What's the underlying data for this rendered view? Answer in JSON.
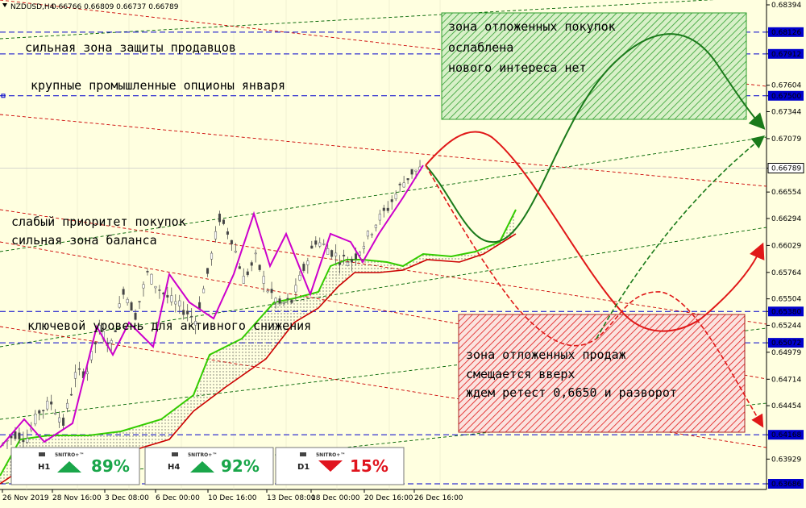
{
  "header": {
    "symbol_timeframe": "NZDUSD,H4",
    "ohlc": "0.66766 0.66809 0.66737 0.66789"
  },
  "annotations": [
    {
      "id": "sellers-zone",
      "text": "сильная зона защиты продавцов"
    },
    {
      "id": "options",
      "text": "крупные промышленные опционы января"
    },
    {
      "id": "buy-priority",
      "text": "слабый приоритет покупок"
    },
    {
      "id": "balance-zone",
      "text": "сильная зона баланса"
    },
    {
      "id": "key-level",
      "text": "ключевой уровень для активного снижения"
    },
    {
      "id": "buy-zone-1",
      "text": "зона отложенных покупок"
    },
    {
      "id": "buy-zone-2",
      "text": "ослаблена"
    },
    {
      "id": "buy-zone-3",
      "text": "нового интереса нет"
    },
    {
      "id": "sell-zone-1",
      "text": "зона отложенных продаж"
    },
    {
      "id": "sell-zone-2",
      "text": "смещается вверх"
    },
    {
      "id": "sell-zone-3",
      "text": "ждем ретест 0,6650 и разворот"
    }
  ],
  "badges": [
    {
      "timeframe": "H1",
      "brand": "5NITRO+™",
      "value": "89%",
      "direction": "up",
      "color": "#1aa64a"
    },
    {
      "timeframe": "H4",
      "brand": "5NITRO+™",
      "value": "92%",
      "direction": "up",
      "color": "#1aa64a"
    },
    {
      "timeframe": "D1",
      "brand": "5NITRO+™",
      "value": "15%",
      "direction": "down",
      "color": "#e0141e"
    }
  ],
  "colors": {
    "background": "#ffffe0",
    "grid": "#c8c8c8",
    "level_line": "#0000cc",
    "green_channel": "#006400",
    "red_channel": "#cc0000",
    "candle": "#555555",
    "zigzag": "#cc00cc",
    "ichimoku_green": "#33cc00",
    "ichimoku_red": "#cc0000",
    "buy_zone": "#2e9e2e",
    "sell_zone": "#e01818",
    "current_price_bg": "#ffffff"
  },
  "chart_data": {
    "type": "candlestick",
    "symbol": "NZDUSD",
    "timeframe": "H4",
    "y_axis_ticks": [
      "0.68394",
      "0.68126",
      "0.67912",
      "0.67604",
      "0.67500",
      "0.67344",
      "0.67079",
      "0.66789",
      "0.66554",
      "0.66294",
      "0.66029",
      "0.65764",
      "0.65504",
      "0.65380",
      "0.65244",
      "0.65072",
      "0.64979",
      "0.64714",
      "0.64454",
      "0.64168",
      "0.63929",
      "0.63686"
    ],
    "ylim": [
      0.63686,
      0.68394
    ],
    "horizontal_levels": [
      0.68126,
      0.67912,
      0.675,
      0.6538,
      0.65072,
      0.64168,
      0.63686
    ],
    "current_price": "0.66789",
    "x_axis_ticks": [
      "26 Nov 2019",
      "28 Nov 16:00",
      "3 Dec 08:00",
      "6 Dec 00:00",
      "10 Dec 16:00",
      "13 Dec 08:00",
      "18 Dec 00:00",
      "20 Dec 16:00",
      "26 Dec 16:00"
    ],
    "price_path": [
      [
        0,
        0.6408
      ],
      [
        3,
        0.6418
      ],
      [
        6,
        0.6414
      ],
      [
        9,
        0.644
      ],
      [
        12,
        0.6448
      ],
      [
        15,
        0.6428
      ],
      [
        18,
        0.6475
      ],
      [
        21,
        0.648
      ],
      [
        24,
        0.652
      ],
      [
        27,
        0.6505
      ],
      [
        30,
        0.656
      ],
      [
        33,
        0.6535
      ],
      [
        36,
        0.6575
      ],
      [
        39,
        0.656
      ],
      [
        42,
        0.6548
      ],
      [
        45,
        0.654
      ],
      [
        48,
        0.653
      ],
      [
        51,
        0.6575
      ],
      [
        54,
        0.663
      ],
      [
        57,
        0.661
      ],
      [
        60,
        0.657
      ],
      [
        63,
        0.659
      ],
      [
        66,
        0.656
      ],
      [
        69,
        0.6545
      ],
      [
        72,
        0.6548
      ],
      [
        75,
        0.658
      ],
      [
        78,
        0.6608
      ],
      [
        81,
        0.66
      ],
      [
        84,
        0.659
      ],
      [
        87,
        0.6588
      ],
      [
        90,
        0.6605
      ],
      [
        93,
        0.6625
      ],
      [
        96,
        0.664
      ],
      [
        99,
        0.666
      ],
      [
        102,
        0.6675
      ],
      [
        105,
        0.6679
      ]
    ]
  }
}
